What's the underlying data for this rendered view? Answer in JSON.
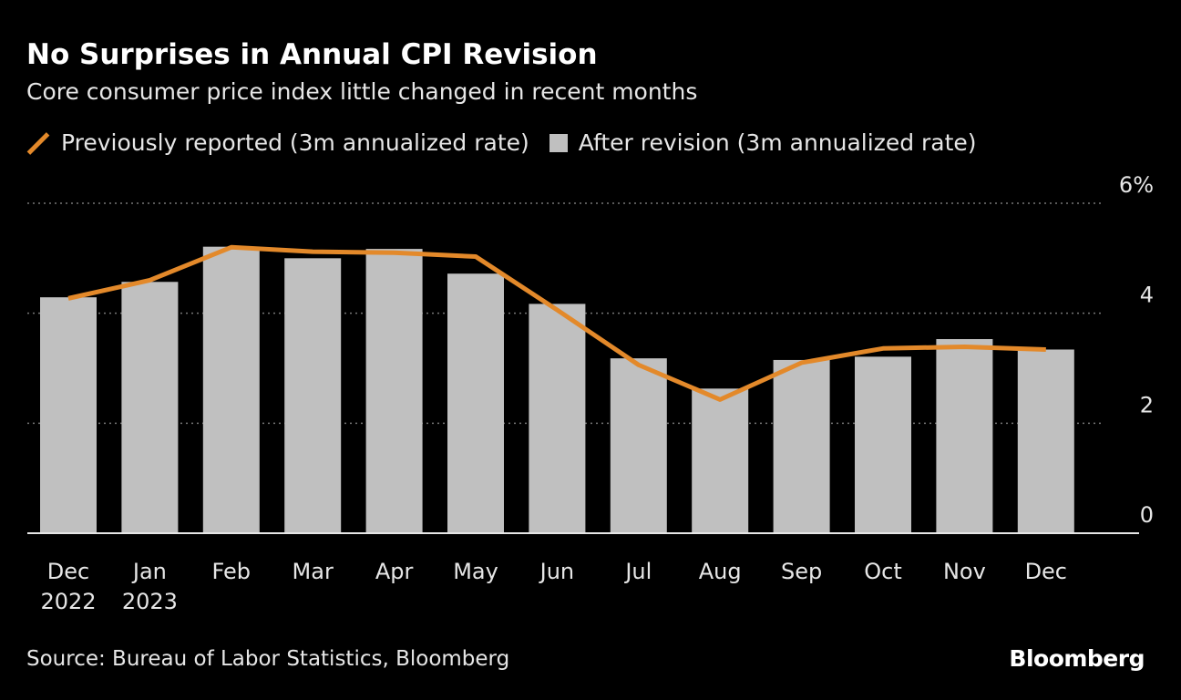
{
  "chart_data": {
    "type": "bar",
    "title": "No Surprises in Annual CPI Revision",
    "subtitle": "Core consumer price index little changed in recent months",
    "categories": [
      [
        "Dec",
        "2022"
      ],
      [
        "Jan",
        "2023"
      ],
      [
        "Feb",
        ""
      ],
      [
        "Mar",
        ""
      ],
      [
        "Apr",
        ""
      ],
      [
        "May",
        ""
      ],
      [
        "Jun",
        ""
      ],
      [
        "Jul",
        ""
      ],
      [
        "Aug",
        ""
      ],
      [
        "Sep",
        ""
      ],
      [
        "Oct",
        ""
      ],
      [
        "Nov",
        ""
      ],
      [
        "Dec",
        ""
      ]
    ],
    "series": [
      {
        "name": "Previously reported (3m annualized rate)",
        "type": "line",
        "color": "#e3892a",
        "values": [
          4.27,
          4.6,
          5.2,
          5.12,
          5.1,
          5.03,
          4.06,
          3.06,
          2.43,
          3.1,
          3.36,
          3.39,
          3.34
        ]
      },
      {
        "name": "After revision (3m annualized rate)",
        "type": "bar",
        "color": "#c0c0c0",
        "values": [
          4.29,
          4.57,
          5.21,
          5.0,
          5.17,
          4.72,
          4.17,
          3.18,
          2.63,
          3.15,
          3.21,
          3.53,
          3.34
        ]
      }
    ],
    "ylim": [
      0,
      6
    ],
    "yticks": [
      0,
      2,
      4,
      6
    ],
    "ytick_labels": [
      "0",
      "2",
      "4",
      "6%"
    ],
    "grid": true,
    "legend_placement": "top-left",
    "xlabel": "",
    "ylabel": ""
  },
  "source": "Source: Bureau of Labor Statistics, Bloomberg",
  "logo": "Bloomberg"
}
